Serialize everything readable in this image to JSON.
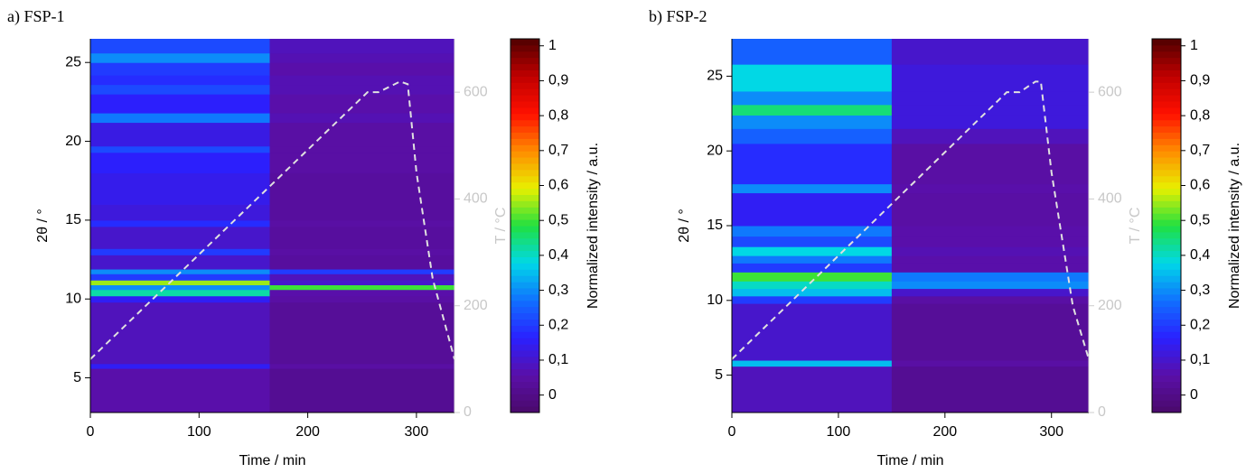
{
  "chart_data": [
    {
      "type": "heatmap",
      "title": "a) FSP-1",
      "xlabel": "Time / min",
      "ylabel": "2θ / °",
      "y2label": "T / °C",
      "colorbar_label": "Normalized intensity / a.u.",
      "xlim": [
        0,
        335
      ],
      "xticks": [
        0,
        100,
        200,
        300
      ],
      "ylim": [
        2.8,
        26.5
      ],
      "yticks": [
        5,
        10,
        15,
        20,
        25
      ],
      "y2lim": [
        0,
        700
      ],
      "y2ticks": [
        0,
        200,
        400,
        600
      ],
      "xbins": [
        0,
        165,
        335
      ],
      "ybins": [
        2.8,
        5.6,
        5.9,
        9.8,
        10.2,
        10.6,
        10.9,
        11.2,
        11.6,
        11.9,
        12.8,
        13.2,
        14.6,
        15.0,
        16.0,
        18.0,
        19.3,
        19.7,
        21.2,
        21.8,
        23.0,
        23.6,
        24.2,
        25.0,
        25.6,
        26.5
      ],
      "z": [
        [
          0.06,
          0.02
        ],
        [
          0.15,
          0.05
        ],
        [
          0.08,
          0.03
        ],
        [
          0.15,
          0.05
        ],
        [
          0.42,
          0.06
        ],
        [
          0.3,
          0.5
        ],
        [
          0.55,
          0.1
        ],
        [
          0.2,
          0.08
        ],
        [
          0.3,
          0.2
        ],
        [
          0.1,
          0.04
        ],
        [
          0.2,
          0.05
        ],
        [
          0.1,
          0.04
        ],
        [
          0.18,
          0.05
        ],
        [
          0.12,
          0.04
        ],
        [
          0.14,
          0.04
        ],
        [
          0.16,
          0.05
        ],
        [
          0.22,
          0.05
        ],
        [
          0.13,
          0.05
        ],
        [
          0.28,
          0.07
        ],
        [
          0.16,
          0.06
        ],
        [
          0.22,
          0.07
        ],
        [
          0.18,
          0.07
        ],
        [
          0.2,
          0.06
        ],
        [
          0.3,
          0.07
        ],
        [
          0.22,
          0.08
        ]
      ],
      "series": [
        {
          "axis": "y2",
          "color": "#e0e0e0",
          "x": [
            0,
            255,
            265,
            285,
            292,
            300,
            315,
            335
          ],
          "values": [
            100,
            600,
            600,
            620,
            615,
            450,
            250,
            100
          ]
        }
      ],
      "clim": [
        -0.05,
        1.02
      ],
      "cticks": [
        0,
        {
          "value": 0.1,
          "label": "0,1"
        },
        {
          "value": 0.2,
          "label": "0,2"
        },
        {
          "value": 0.3,
          "label": "0,3"
        },
        {
          "value": 0.4,
          "label": "0,4"
        },
        {
          "value": 0.5,
          "label": "0,5"
        },
        {
          "value": 0.6,
          "label": "0,6"
        },
        {
          "value": 0.7,
          "label": "0,7"
        },
        {
          "value": 0.8,
          "label": "0,8"
        },
        {
          "value": 0.9,
          "label": "0,9"
        },
        1
      ],
      "colorscale": [
        "#4a0a6a",
        "#5a0fa8",
        "#2a20ff",
        "#1070ff",
        "#00d8e8",
        "#20e040",
        "#e8f000",
        "#ff8c00",
        "#ff1000",
        "#c00000",
        "#500000"
      ]
    },
    {
      "type": "heatmap",
      "title": "b) FSP-2",
      "xlabel": "Time / min",
      "ylabel": "2θ / °",
      "y2label": "T / °C",
      "colorbar_label": "Normalized intensity / a.u.",
      "xlim": [
        0,
        335
      ],
      "xticks": [
        0,
        100,
        200,
        300
      ],
      "ylim": [
        2.5,
        27.5
      ],
      "yticks": [
        5,
        10,
        15,
        20,
        25
      ],
      "y2lim": [
        0,
        700
      ],
      "y2ticks": [
        0,
        200,
        400,
        600
      ],
      "xbins": [
        0,
        150,
        335
      ],
      "ybins": [
        2.5,
        5.6,
        6.0,
        9.8,
        10.3,
        10.8,
        11.3,
        11.9,
        12.5,
        13.0,
        13.6,
        14.3,
        15.0,
        17.2,
        17.8,
        20.5,
        21.5,
        22.4,
        23.1,
        24.0,
        25.8,
        27.5
      ],
      "z": [
        [
          0.08,
          0.02
        ],
        [
          0.35,
          0.05
        ],
        [
          0.1,
          0.03
        ],
        [
          0.2,
          0.05
        ],
        [
          0.35,
          0.1
        ],
        [
          0.4,
          0.3
        ],
        [
          0.5,
          0.28
        ],
        [
          0.2,
          0.06
        ],
        [
          0.28,
          0.06
        ],
        [
          0.38,
          0.07
        ],
        [
          0.22,
          0.06
        ],
        [
          0.28,
          0.06
        ],
        [
          0.15,
          0.05
        ],
        [
          0.3,
          0.06
        ],
        [
          0.18,
          0.05
        ],
        [
          0.25,
          0.08
        ],
        [
          0.3,
          0.12
        ],
        [
          0.45,
          0.12
        ],
        [
          0.3,
          0.12
        ],
        [
          0.38,
          0.12
        ],
        [
          0.25,
          0.1
        ]
      ],
      "series": [
        {
          "axis": "y2",
          "color": "#e0e0e0",
          "x": [
            0,
            258,
            270,
            285,
            290,
            300,
            320,
            335
          ],
          "values": [
            100,
            600,
            600,
            620,
            620,
            450,
            200,
            100
          ]
        }
      ],
      "clim": [
        -0.05,
        1.02
      ],
      "cticks": [
        0,
        {
          "value": 0.1,
          "label": "0,1"
        },
        {
          "value": 0.2,
          "label": "0,2"
        },
        {
          "value": 0.3,
          "label": "0,3"
        },
        {
          "value": 0.4,
          "label": "0,4"
        },
        {
          "value": 0.5,
          "label": "0,5"
        },
        {
          "value": 0.6,
          "label": "0,6"
        },
        {
          "value": 0.7,
          "label": "0,7"
        },
        {
          "value": 0.8,
          "label": "0,8"
        },
        {
          "value": 0.9,
          "label": "0,9"
        },
        1
      ],
      "colorscale": [
        "#4a0a6a",
        "#5a0fa8",
        "#2a20ff",
        "#1070ff",
        "#00d8e8",
        "#20e040",
        "#e8f000",
        "#ff8c00",
        "#ff1000",
        "#c00000",
        "#500000"
      ]
    }
  ]
}
